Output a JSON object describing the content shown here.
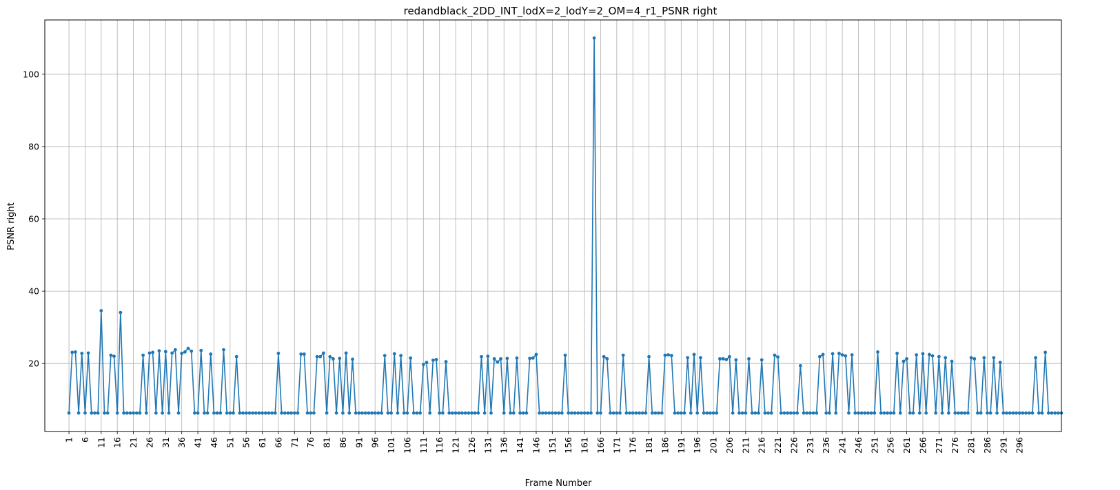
{
  "chart_data": {
    "type": "line",
    "title": "redandblack_2DD_INT_lodX=2_lodY=2_OM=4_r1_PSNR right",
    "xlabel": "Frame Number",
    "ylabel": "PSNR right",
    "xlim": [
      -6.5,
      309
    ],
    "ylim": [
      1.2,
      115
    ],
    "grid": true,
    "x_ticks": [
      1,
      6,
      11,
      16,
      21,
      26,
      31,
      36,
      41,
      46,
      51,
      56,
      61,
      66,
      71,
      76,
      81,
      86,
      91,
      96,
      101,
      106,
      111,
      116,
      121,
      126,
      131,
      136,
      141,
      146,
      151,
      156,
      161,
      166,
      171,
      176,
      181,
      186,
      191,
      196,
      201,
      206,
      211,
      216,
      221,
      226,
      231,
      236,
      241,
      246,
      251,
      256,
      261,
      266,
      271,
      276,
      281,
      286,
      291,
      296
    ],
    "y_ticks": [
      20,
      40,
      60,
      80,
      100
    ],
    "line_color": "#1f77b4",
    "series": [
      {
        "x_start": 1,
        "values": [
          6.3,
          23.1,
          23.2,
          6.3,
          22.8,
          6.3,
          22.9,
          6.3,
          6.3,
          6.3,
          34.6,
          6.3,
          6.3,
          22.3,
          22.0,
          6.3,
          34.1,
          6.3,
          6.3,
          6.3,
          6.3,
          6.3,
          6.3,
          22.3,
          6.3,
          22.9,
          23.1,
          6.3,
          23.5,
          6.3,
          23.3,
          6.3,
          22.9,
          23.8,
          6.3,
          22.8,
          23.2,
          24.2,
          23.4,
          6.3,
          6.3,
          23.6,
          6.3,
          6.3,
          22.6,
          6.3,
          6.3,
          6.3,
          23.8,
          6.3,
          6.3,
          6.3,
          21.9,
          6.3,
          6.3,
          6.3,
          6.3,
          6.3,
          6.3,
          6.3,
          6.3,
          6.3,
          6.3,
          6.3,
          6.3,
          22.8,
          6.3,
          6.3,
          6.3,
          6.3,
          6.3,
          6.3,
          22.6,
          22.6,
          6.3,
          6.3,
          6.3,
          21.9,
          21.9,
          22.9,
          6.3,
          21.9,
          21.3,
          6.3,
          21.4,
          6.3,
          22.9,
          6.3,
          21.2,
          6.3,
          6.3,
          6.3,
          6.3,
          6.3,
          6.3,
          6.3,
          6.3,
          6.3,
          22.2,
          6.3,
          6.3,
          22.7,
          6.3,
          22.2,
          6.3,
          6.3,
          21.5,
          6.3,
          6.3,
          6.3,
          19.7,
          20.3,
          6.3,
          20.9,
          21.1,
          6.3,
          6.3,
          20.5,
          6.3,
          6.3,
          6.3,
          6.3,
          6.3,
          6.3,
          6.3,
          6.3,
          6.3,
          6.3,
          21.9,
          6.3,
          22.0,
          6.3,
          21.3,
          20.4,
          21.3,
          6.3,
          21.4,
          6.3,
          6.3,
          21.5,
          6.3,
          6.3,
          6.3,
          21.4,
          21.5,
          22.5,
          6.3,
          6.3,
          6.3,
          6.3,
          6.3,
          6.3,
          6.3,
          6.3,
          22.3,
          6.3,
          6.3,
          6.3,
          6.3,
          6.3,
          6.3,
          6.3,
          6.3,
          110.0,
          6.3,
          6.3,
          21.9,
          21.3,
          6.3,
          6.3,
          6.3,
          6.3,
          22.3,
          6.3,
          6.3,
          6.3,
          6.3,
          6.3,
          6.3,
          6.3,
          21.9,
          6.3,
          6.3,
          6.3,
          6.3,
          22.3,
          22.4,
          22.2,
          6.3,
          6.3,
          6.3,
          6.3,
          21.6,
          6.3,
          22.5,
          6.3,
          21.6,
          6.3,
          6.3,
          6.3,
          6.3,
          6.3,
          21.3,
          21.3,
          21.1,
          21.9,
          6.3,
          21.0,
          6.3,
          6.3,
          6.3,
          21.3,
          6.3,
          6.3,
          6.3,
          21.0,
          6.3,
          6.3,
          6.3,
          22.3,
          21.8,
          6.3,
          6.3,
          6.3,
          6.3,
          6.3,
          6.3,
          19.4,
          6.3,
          6.3,
          6.3,
          6.3,
          6.3,
          21.9,
          22.5,
          6.3,
          6.3,
          22.7,
          6.3,
          22.8,
          22.4,
          22.1,
          6.3,
          22.4,
          6.3,
          6.3,
          6.3,
          6.3,
          6.3,
          6.3,
          6.3,
          23.2,
          6.3,
          6.3,
          6.3,
          6.3,
          6.3,
          22.8,
          6.3,
          20.6,
          21.3,
          6.3,
          6.3,
          22.4,
          6.3,
          22.7,
          6.3,
          22.5,
          22.1,
          6.3,
          21.9,
          6.3,
          21.6,
          6.3,
          20.6,
          6.3,
          6.3,
          6.3,
          6.3,
          6.3,
          21.6,
          21.3,
          6.3,
          6.3,
          21.6,
          6.3,
          6.3,
          21.6,
          6.3,
          20.3,
          6.3,
          6.3,
          6.3,
          6.3,
          6.3,
          6.3,
          6.3,
          6.3,
          6.3,
          6.3,
          21.6,
          6.3,
          6.3,
          23.1,
          6.3,
          6.3,
          6.3,
          6.3,
          6.3
        ]
      }
    ]
  }
}
